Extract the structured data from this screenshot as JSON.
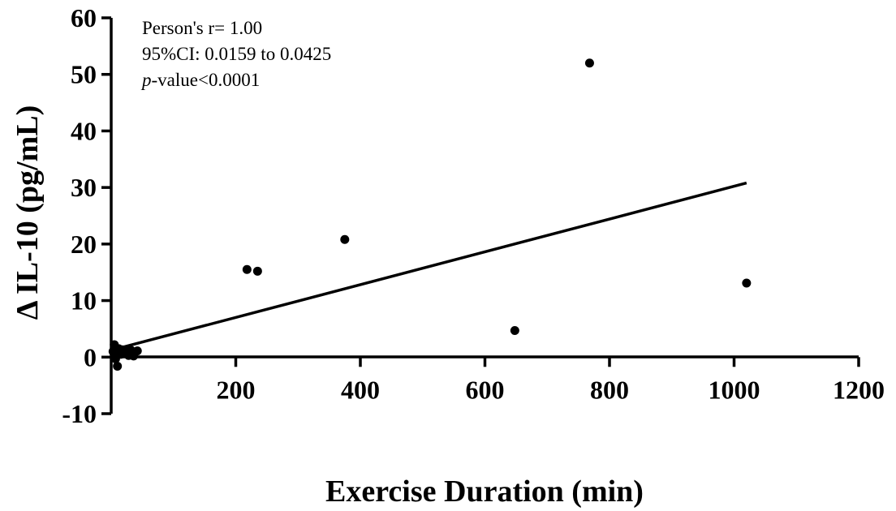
{
  "chart_data": {
    "type": "scatter",
    "title": "",
    "xlabel": "Exercise Duration (min)",
    "ylabel": "Δ IL-10 (pg/mL)",
    "xlim": [
      0,
      1200
    ],
    "ylim": [
      -10,
      60
    ],
    "x_ticks": [
      200,
      400,
      600,
      800,
      1000,
      1200
    ],
    "y_ticks": [
      -10,
      0,
      10,
      20,
      30,
      40,
      50,
      60
    ],
    "points": [
      {
        "x": 3,
        "y": 1.0
      },
      {
        "x": 5,
        "y": 2.2
      },
      {
        "x": 7,
        "y": -0.3
      },
      {
        "x": 10,
        "y": -1.6
      },
      {
        "x": 12,
        "y": 1.5
      },
      {
        "x": 15,
        "y": 0.5
      },
      {
        "x": 18,
        "y": 1.3
      },
      {
        "x": 22,
        "y": 0.8
      },
      {
        "x": 25,
        "y": 1.0
      },
      {
        "x": 28,
        "y": 0.3
      },
      {
        "x": 32,
        "y": 1.2
      },
      {
        "x": 36,
        "y": 0.2
      },
      {
        "x": 42,
        "y": 1.1
      },
      {
        "x": 218,
        "y": 15.5
      },
      {
        "x": 235,
        "y": 15.2
      },
      {
        "x": 375,
        "y": 20.8
      },
      {
        "x": 648,
        "y": 4.7
      },
      {
        "x": 768,
        "y": 52.0
      },
      {
        "x": 1020,
        "y": 13.1
      }
    ],
    "fit_line": {
      "x": [
        3,
        1020
      ],
      "y": [
        1.3,
        30.8
      ]
    },
    "grid": false,
    "annotations": [
      {
        "text": "Person's r= 1.00"
      },
      {
        "text": "95%CI: 0.0159 to 0.0425"
      },
      {
        "prefix": "p",
        "text": "-value<0.0001"
      }
    ]
  }
}
